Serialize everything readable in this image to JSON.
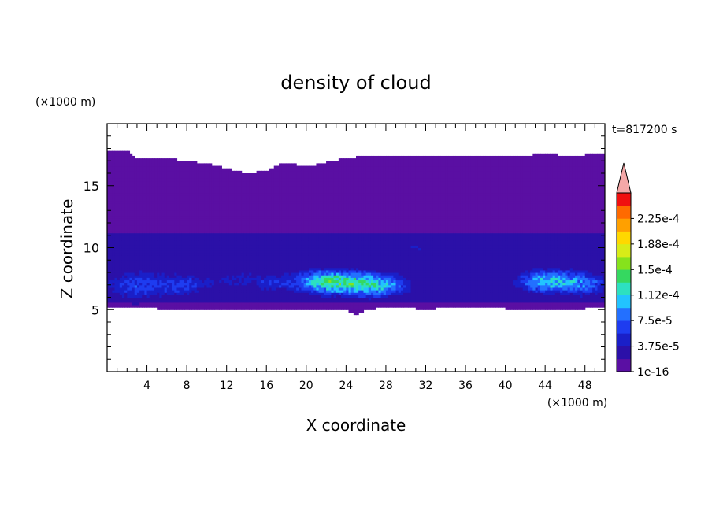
{
  "chart_data": {
    "type": "heatmap",
    "title": "density of cloud",
    "xlabel": "X coordinate",
    "ylabel": "Z coordinate",
    "x_unit": "(×1000 m)",
    "y_unit": "(×1000 m)",
    "time_label": "t=817200 s",
    "xlim": [
      0,
      50
    ],
    "ylim": [
      0,
      20
    ],
    "x_ticks": [
      4,
      8,
      12,
      16,
      20,
      24,
      28,
      32,
      36,
      40,
      44,
      48
    ],
    "y_ticks": [
      5,
      10,
      15
    ],
    "grid": false,
    "legend": {
      "placement": "right",
      "levels": [
        1e-16,
        1.875e-05,
        3.75e-05,
        5.625e-05,
        7.5e-05,
        9.375e-05,
        0.0001125,
        0.00013125,
        0.00015,
        0.00016875,
        0.0001875,
        0.00020625,
        0.000225,
        0.00024375
      ],
      "labels": [
        "1e-16",
        "3.75e-5",
        "7.5e-5",
        "1.12e-4",
        "1.5e-4",
        "1.88e-4",
        "2.25e-4"
      ],
      "colors": [
        "#5a0fa3",
        "#2b10a8",
        "#1a1fc8",
        "#1e3cf0",
        "#2370ff",
        "#22c3ff",
        "#2de0c0",
        "#35d860",
        "#86e21c",
        "#d8ec18",
        "#ffd800",
        "#ffa000",
        "#ff6a00",
        "#f01010"
      ],
      "overflow_color": "#f4a8a8"
    },
    "cloud_layer": {
      "top_profile": {
        "x": [
          0,
          2,
          3,
          5,
          8,
          10,
          12,
          14,
          16,
          17,
          18,
          20,
          22,
          24,
          26,
          28,
          30,
          32,
          34,
          36,
          38,
          40,
          42,
          44,
          46,
          48,
          50
        ],
        "z": [
          17.7,
          17.8,
          17.2,
          17.3,
          17.0,
          16.8,
          16.4,
          16.0,
          16.2,
          16.6,
          16.9,
          16.5,
          16.9,
          17.2,
          17.4,
          17.5,
          17.4,
          17.4,
          17.5,
          17.4,
          17.4,
          17.3,
          17.4,
          17.7,
          17.4,
          17.5,
          17.6
        ]
      },
      "bottom_profile": {
        "x": [
          0,
          5,
          8,
          10,
          12,
          16,
          18,
          20,
          22,
          24,
          25,
          26,
          28,
          30,
          32,
          34,
          36,
          40,
          44,
          48,
          50
        ],
        "z": [
          5.2,
          5.1,
          5.1,
          5.1,
          5.0,
          5.1,
          5.0,
          5.1,
          5.1,
          5.0,
          4.6,
          5.0,
          5.2,
          5.2,
          5.0,
          5.2,
          5.2,
          5.1,
          5.1,
          5.1,
          5.2
        ]
      },
      "background_density": 1e-16,
      "blobs": [
        {
          "x": 3.0,
          "z": 7.0,
          "sx": 3.5,
          "sz": 1.3,
          "density": 6.6e-05
        },
        {
          "x": 8.0,
          "z": 7.0,
          "sx": 2.5,
          "sz": 1.1,
          "density": 4.9e-05
        },
        {
          "x": 13.0,
          "z": 7.5,
          "sx": 3.0,
          "sz": 1.0,
          "density": 3.8e-05
        },
        {
          "x": 16.5,
          "z": 7.1,
          "sx": 2.0,
          "sz": 0.9,
          "density": 3.5e-05
        },
        {
          "x": 22.0,
          "z": 7.3,
          "sx": 3.5,
          "sz": 1.0,
          "density": 0.00012
        },
        {
          "x": 27.0,
          "z": 7.0,
          "sx": 3.5,
          "sz": 1.0,
          "density": 0.000108
        },
        {
          "x": 31.0,
          "z": 10.0,
          "sx": 1.8,
          "sz": 1.0,
          "density": 3.5e-05
        },
        {
          "x": 35.0,
          "z": 7.4,
          "sx": 2.5,
          "sz": 0.9,
          "density": 3e-05
        },
        {
          "x": 44.5,
          "z": 7.3,
          "sx": 3.5,
          "sz": 1.0,
          "density": 0.000112
        },
        {
          "x": 48.5,
          "z": 7.0,
          "sx": 2.0,
          "sz": 1.0,
          "density": 5.4e-05
        }
      ]
    }
  }
}
